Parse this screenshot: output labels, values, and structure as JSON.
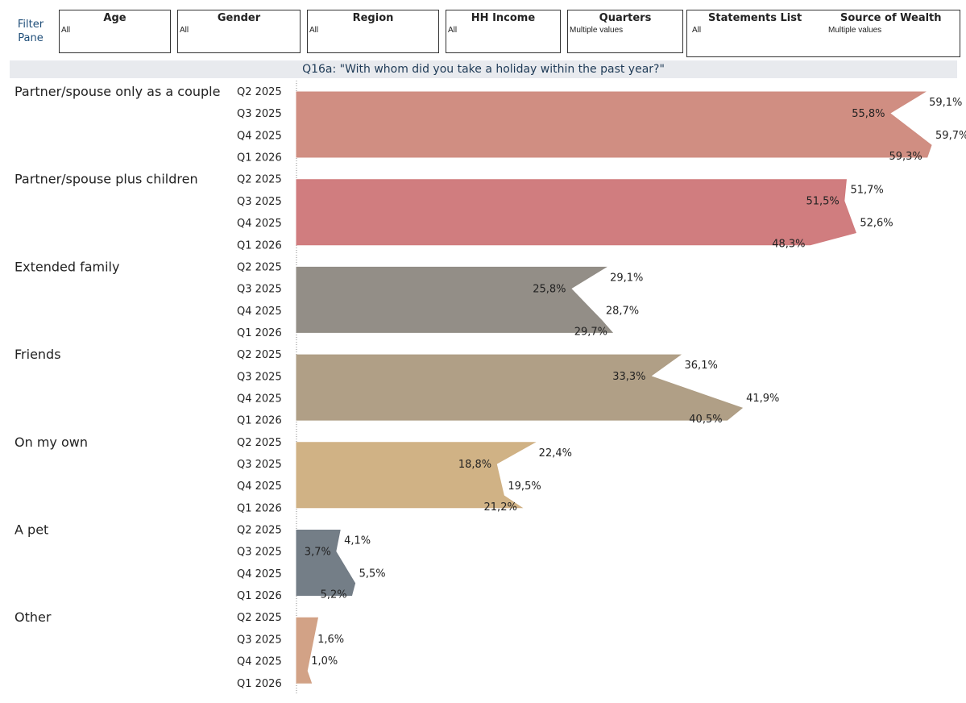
{
  "filter_pane": {
    "label_line1": "Filter",
    "label_line2": "Pane"
  },
  "filters": {
    "age": {
      "title": "Age",
      "value": "All"
    },
    "gender": {
      "title": "Gender",
      "value": "All"
    },
    "region": {
      "title": "Region",
      "value": "All"
    },
    "hh_income": {
      "title": "HH Income",
      "value": "All"
    },
    "quarters": {
      "title": "Quarters",
      "value": "Multiple values"
    },
    "statements_list": {
      "title": "Statements List",
      "value": "All"
    },
    "source_of_wealth": {
      "title": "Source of Wealth",
      "value": "Multiple values"
    }
  },
  "question": "Q16a: \"With whom did you take a holiday within the past year?\"",
  "chart_data": {
    "type": "area",
    "title": "Q16a: \"With whom did you take a holiday within the past year?\"",
    "quarters": [
      "Q2 2025",
      "Q3 2025",
      "Q4 2025",
      "Q1 2026"
    ],
    "xlim": [
      0,
      65
    ],
    "value_suffix": "%",
    "decimal_separator": ",",
    "groups": [
      {
        "name": "Partner/spouse only as a couple",
        "color": "#cf8c80",
        "values": [
          59.1,
          55.8,
          59.7,
          59.3
        ]
      },
      {
        "name": "Partner/spouse plus children",
        "color": "#cf7a7c",
        "values": [
          51.7,
          51.5,
          52.6,
          48.3
        ]
      },
      {
        "name": "Extended family",
        "color": "#918c85",
        "values": [
          29.1,
          25.8,
          28.7,
          29.7
        ]
      },
      {
        "name": "Friends",
        "color": "#ae9d84",
        "values": [
          36.1,
          33.3,
          41.9,
          40.5
        ]
      },
      {
        "name": "On my own",
        "color": "#cfb083",
        "values": [
          22.4,
          18.8,
          19.5,
          21.2
        ]
      },
      {
        "name": "A pet",
        "color": "#717b85",
        "values": [
          4.1,
          3.7,
          5.5,
          5.2
        ]
      },
      {
        "name": "Other",
        "color": "#d1a084",
        "values": [
          2.0,
          1.6,
          1.0,
          1.4
        ]
      }
    ],
    "value_labels": [
      [
        "59,1%",
        "55,8%",
        "59,7%",
        "59,3%"
      ],
      [
        "51,7%",
        "51,5%",
        "52,6%",
        "48,3%"
      ],
      [
        "29,1%",
        "25,8%",
        "28,7%",
        "29,7%"
      ],
      [
        "36,1%",
        "33,3%",
        "41,9%",
        "40,5%"
      ],
      [
        "22,4%",
        "18,8%",
        "19,5%",
        "21,2%"
      ],
      [
        "4,1%",
        "3,7%",
        "5,5%",
        "5,2%"
      ],
      [
        "",
        "1,6%",
        "1,0%",
        ""
      ]
    ]
  }
}
